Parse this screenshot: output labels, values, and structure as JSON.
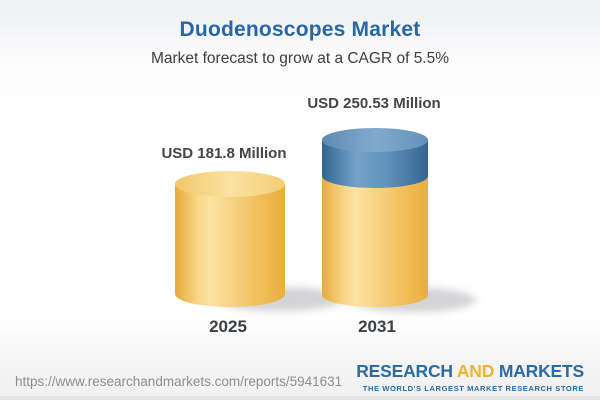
{
  "header": {
    "title": "Duodenoscopes Market",
    "subtitle": "Market forecast to grow at a CAGR of 5.5%"
  },
  "chart_data": {
    "type": "bar",
    "subtype": "3d-cylinder-stacked",
    "title": "Duodenoscopes Market",
    "subtitle": "Market forecast to grow at a CAGR of 5.5%",
    "categories": [
      "2025",
      "2031"
    ],
    "values": [
      181.8,
      250.53
    ],
    "value_labels": [
      "USD 181.8 Million",
      "USD 250.53 Million"
    ],
    "unit": "USD Million",
    "cagr_percent": 5.5,
    "series": [
      {
        "name": "base-value",
        "color": "#f2c564",
        "values": [
          181.8,
          181.8
        ]
      },
      {
        "name": "forecast-growth",
        "color": "#4878a8",
        "values": [
          0,
          68.73
        ]
      }
    ],
    "legend": "none",
    "axes": "hidden",
    "ylim": [
      0,
      260
    ]
  },
  "footer": {
    "url": "https://www.researchandmarkets.com/reports/5941631",
    "logo": {
      "word1": "RESEARCH",
      "word2": "AND",
      "word3": "MARKETS",
      "tagline": "THE WORLD'S LARGEST MARKET RESEARCH STORE"
    }
  },
  "colors": {
    "title_blue": "#2767a8",
    "bar_yellow": "#f2c564",
    "bar_blue": "#4878a8",
    "logo_blue": "#2a6ba4",
    "logo_gold": "#f0b231",
    "text_dark": "#3e3e40",
    "url_gray": "#8e8e90"
  }
}
